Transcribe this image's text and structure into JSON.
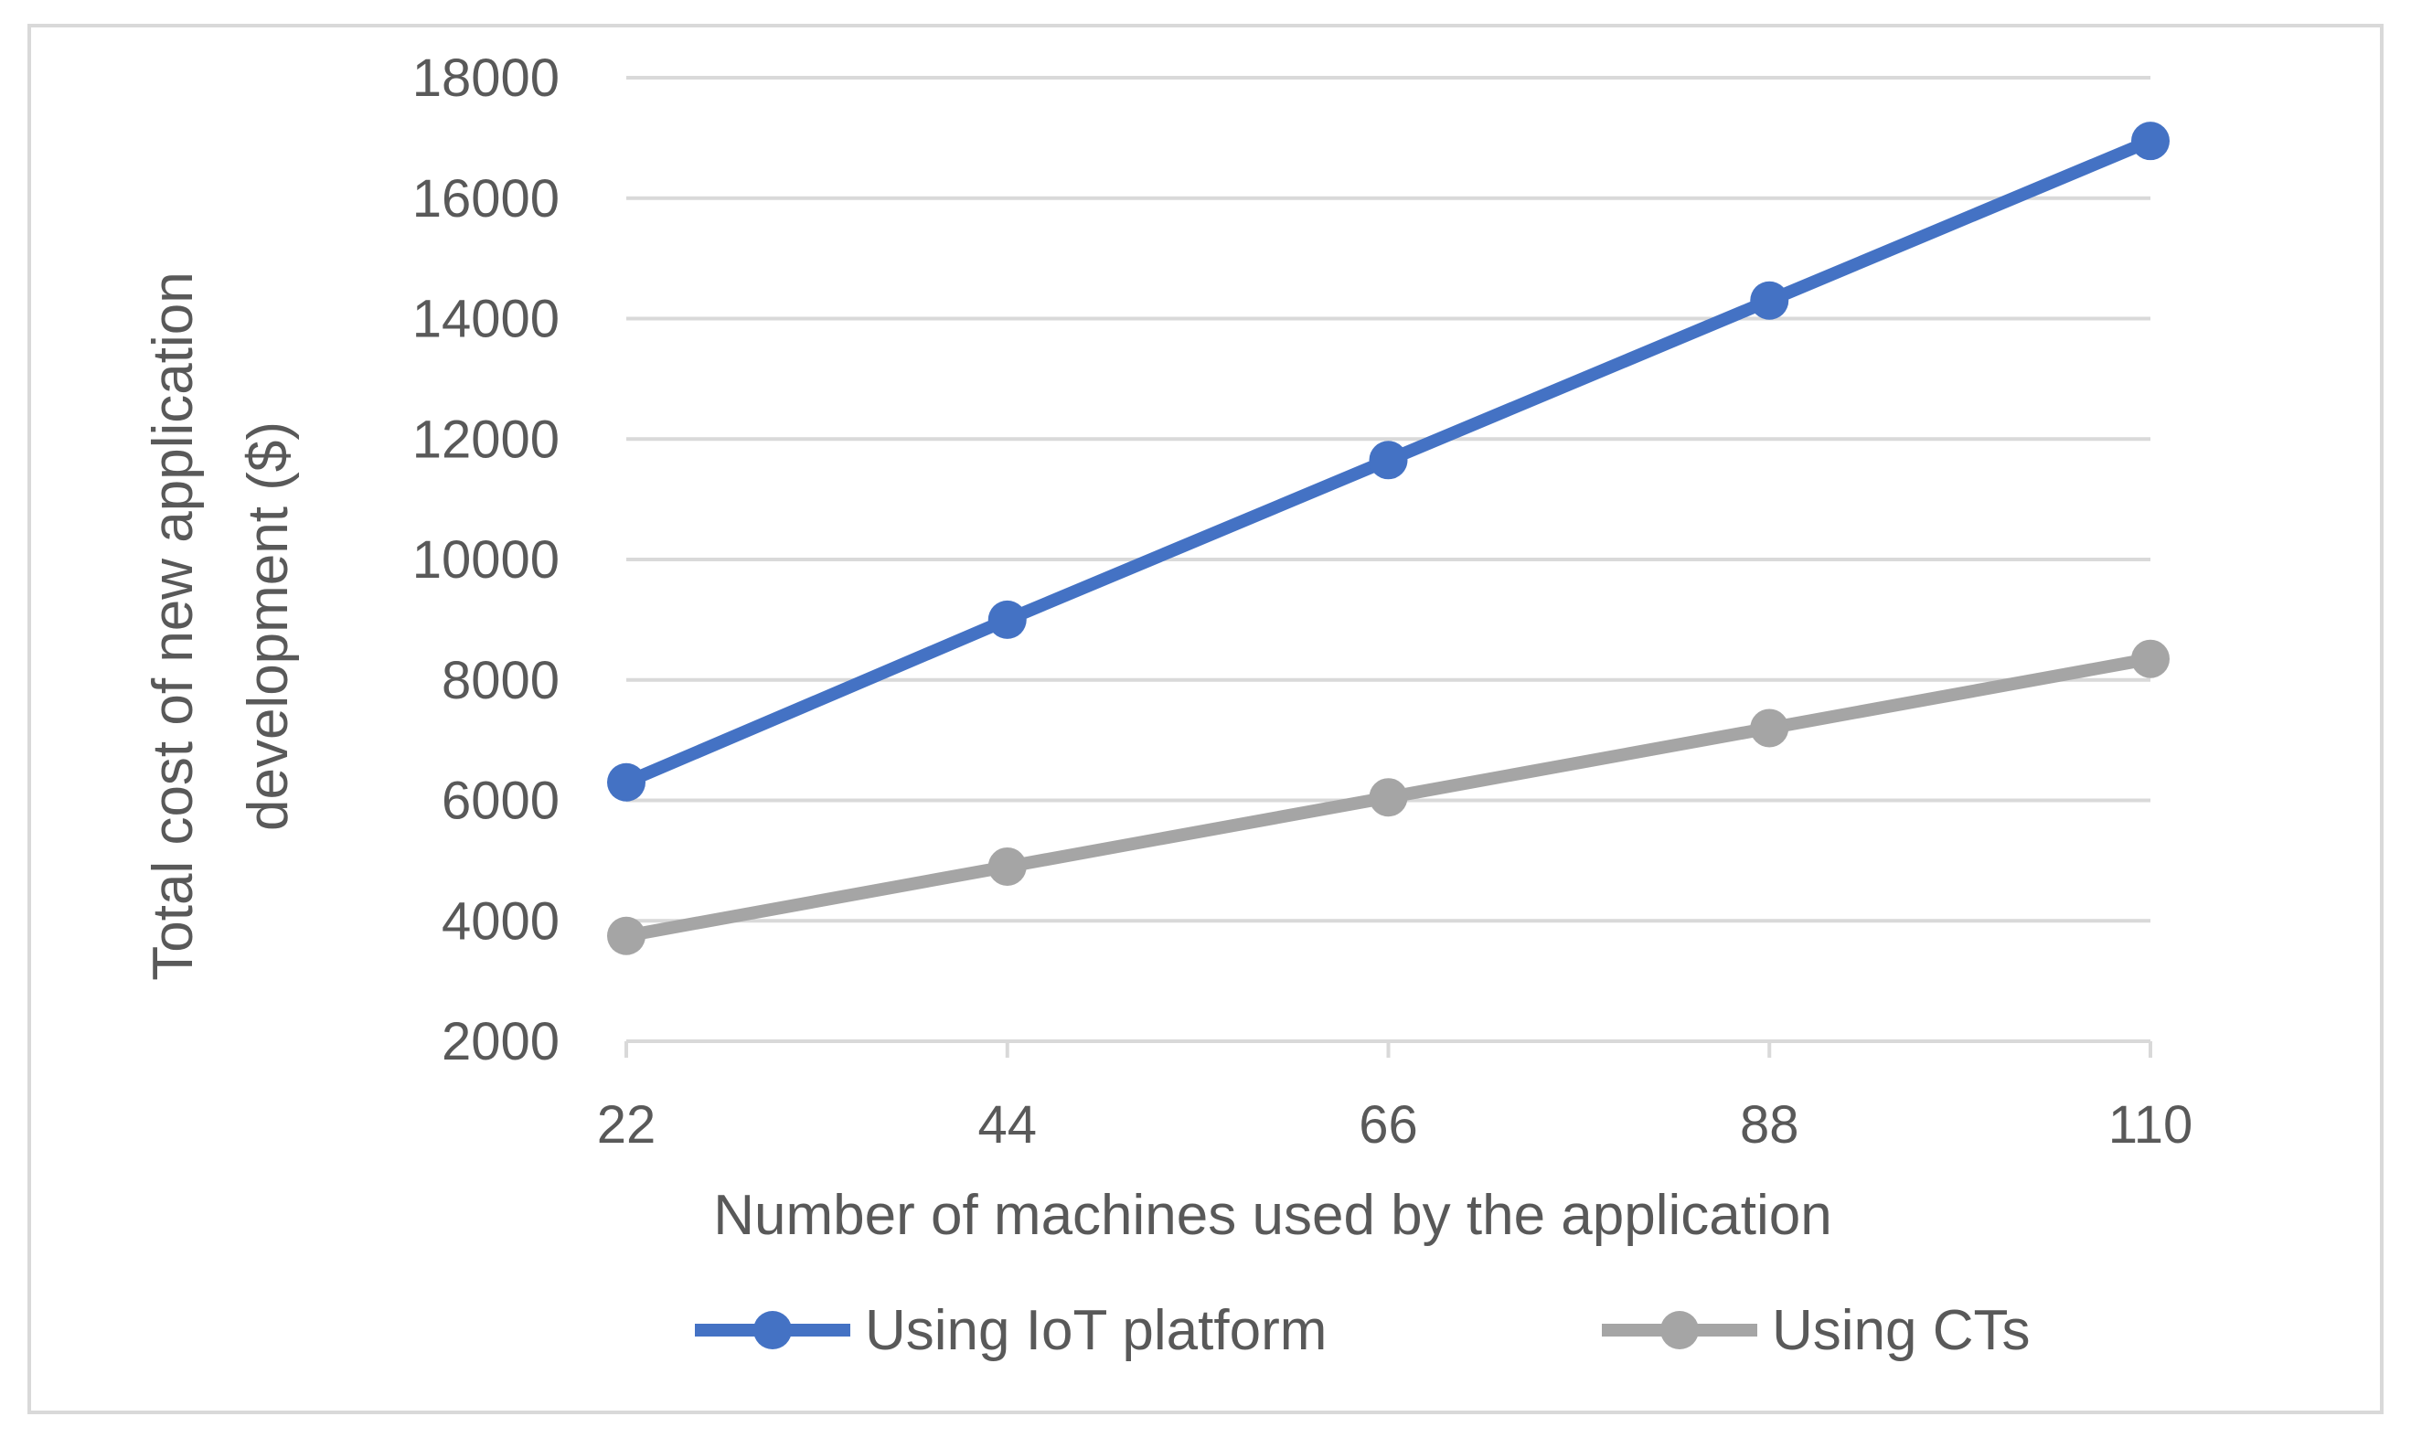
{
  "chart_data": {
    "type": "line",
    "x": [
      22,
      44,
      66,
      88,
      110
    ],
    "xlabel": "Number of machines used by the application",
    "ylabel": [
      "Total cost of new application",
      "development  ($)"
    ],
    "ylim": [
      2000,
      18000
    ],
    "yticks": [
      2000,
      4000,
      6000,
      8000,
      10000,
      12000,
      14000,
      16000,
      18000
    ],
    "grid": "horizontal",
    "legend_position": "bottom",
    "series": [
      {
        "name": "Using  IoT platform",
        "values": [
          6300,
          9000,
          11650,
          14300,
          16950
        ],
        "color": "#4472c4"
      },
      {
        "name": "Using CTs",
        "values": [
          3750,
          4900,
          6050,
          7200,
          8350
        ],
        "color": "#a5a5a5"
      }
    ]
  }
}
